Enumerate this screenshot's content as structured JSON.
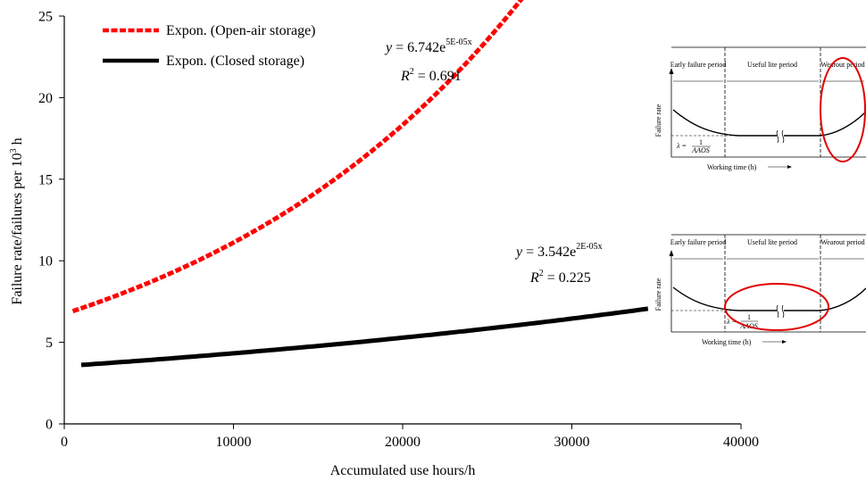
{
  "chart_data": {
    "type": "line",
    "title": "",
    "xlabel": "Accumulated use hours/h",
    "ylabel": "Failure rate/failures per 10",
    "ylabel_sup": "3",
    "ylabel_suffix": " h",
    "xlim": [
      0,
      40000
    ],
    "ylim": [
      0,
      25
    ],
    "x_ticks": [
      0,
      10000,
      20000,
      30000,
      40000
    ],
    "x_tick_labels": [
      "0",
      "10000",
      "20000",
      "30000",
      "40000"
    ],
    "y_ticks": [
      0,
      5,
      10,
      15,
      20,
      25
    ],
    "y_tick_labels": [
      "0",
      "5",
      "10",
      "15",
      "20",
      "25"
    ],
    "grid": false,
    "legend_position": "top-left",
    "series": [
      {
        "name": "Expon. (Open-air storage)",
        "color": "#ff0000",
        "style": "dashed",
        "model": {
          "a": 6.742,
          "b": 5e-05,
          "x_start": 500,
          "x_end": 28000
        }
      },
      {
        "name": "Expon. (Closed storage)",
        "color": "#000000",
        "style": "solid",
        "model": {
          "a": 3.542,
          "b": 2e-05,
          "x_start": 1000,
          "x_end": 34500
        }
      }
    ],
    "annotations": [
      {
        "eq_prefix": "y",
        "eq_mid": " = 6.742e",
        "eq_sup": "5E-05x",
        "r2_prefix": "R",
        "r2_sup": "2",
        "r2_value": " = 0.691"
      },
      {
        "eq_prefix": "y",
        "eq_mid": " = 3.542e",
        "eq_sup": "2E-05x",
        "r2_prefix": "R",
        "r2_sup": "2",
        "r2_value": " = 0.225"
      }
    ]
  },
  "insets": [
    {
      "periods": [
        "Early failure period",
        "Useful lite period",
        "Wearout period"
      ],
      "ylabel": "Failure rate",
      "xlabel": "Working time (h)",
      "lambda_label": "λ =",
      "lambda_num": "1",
      "lambda_den": "AAOS",
      "highlight": "wearout",
      "highlight_color": "#e00000"
    },
    {
      "periods": [
        "Early failure period",
        "Useful lite period",
        "Wearout period"
      ],
      "ylabel": "Failure rate",
      "xlabel": "Working time (h)",
      "lambda_label": "λ =",
      "lambda_num": "1",
      "lambda_den": "AAOS",
      "highlight": "useful",
      "highlight_color": "#e00000"
    }
  ]
}
